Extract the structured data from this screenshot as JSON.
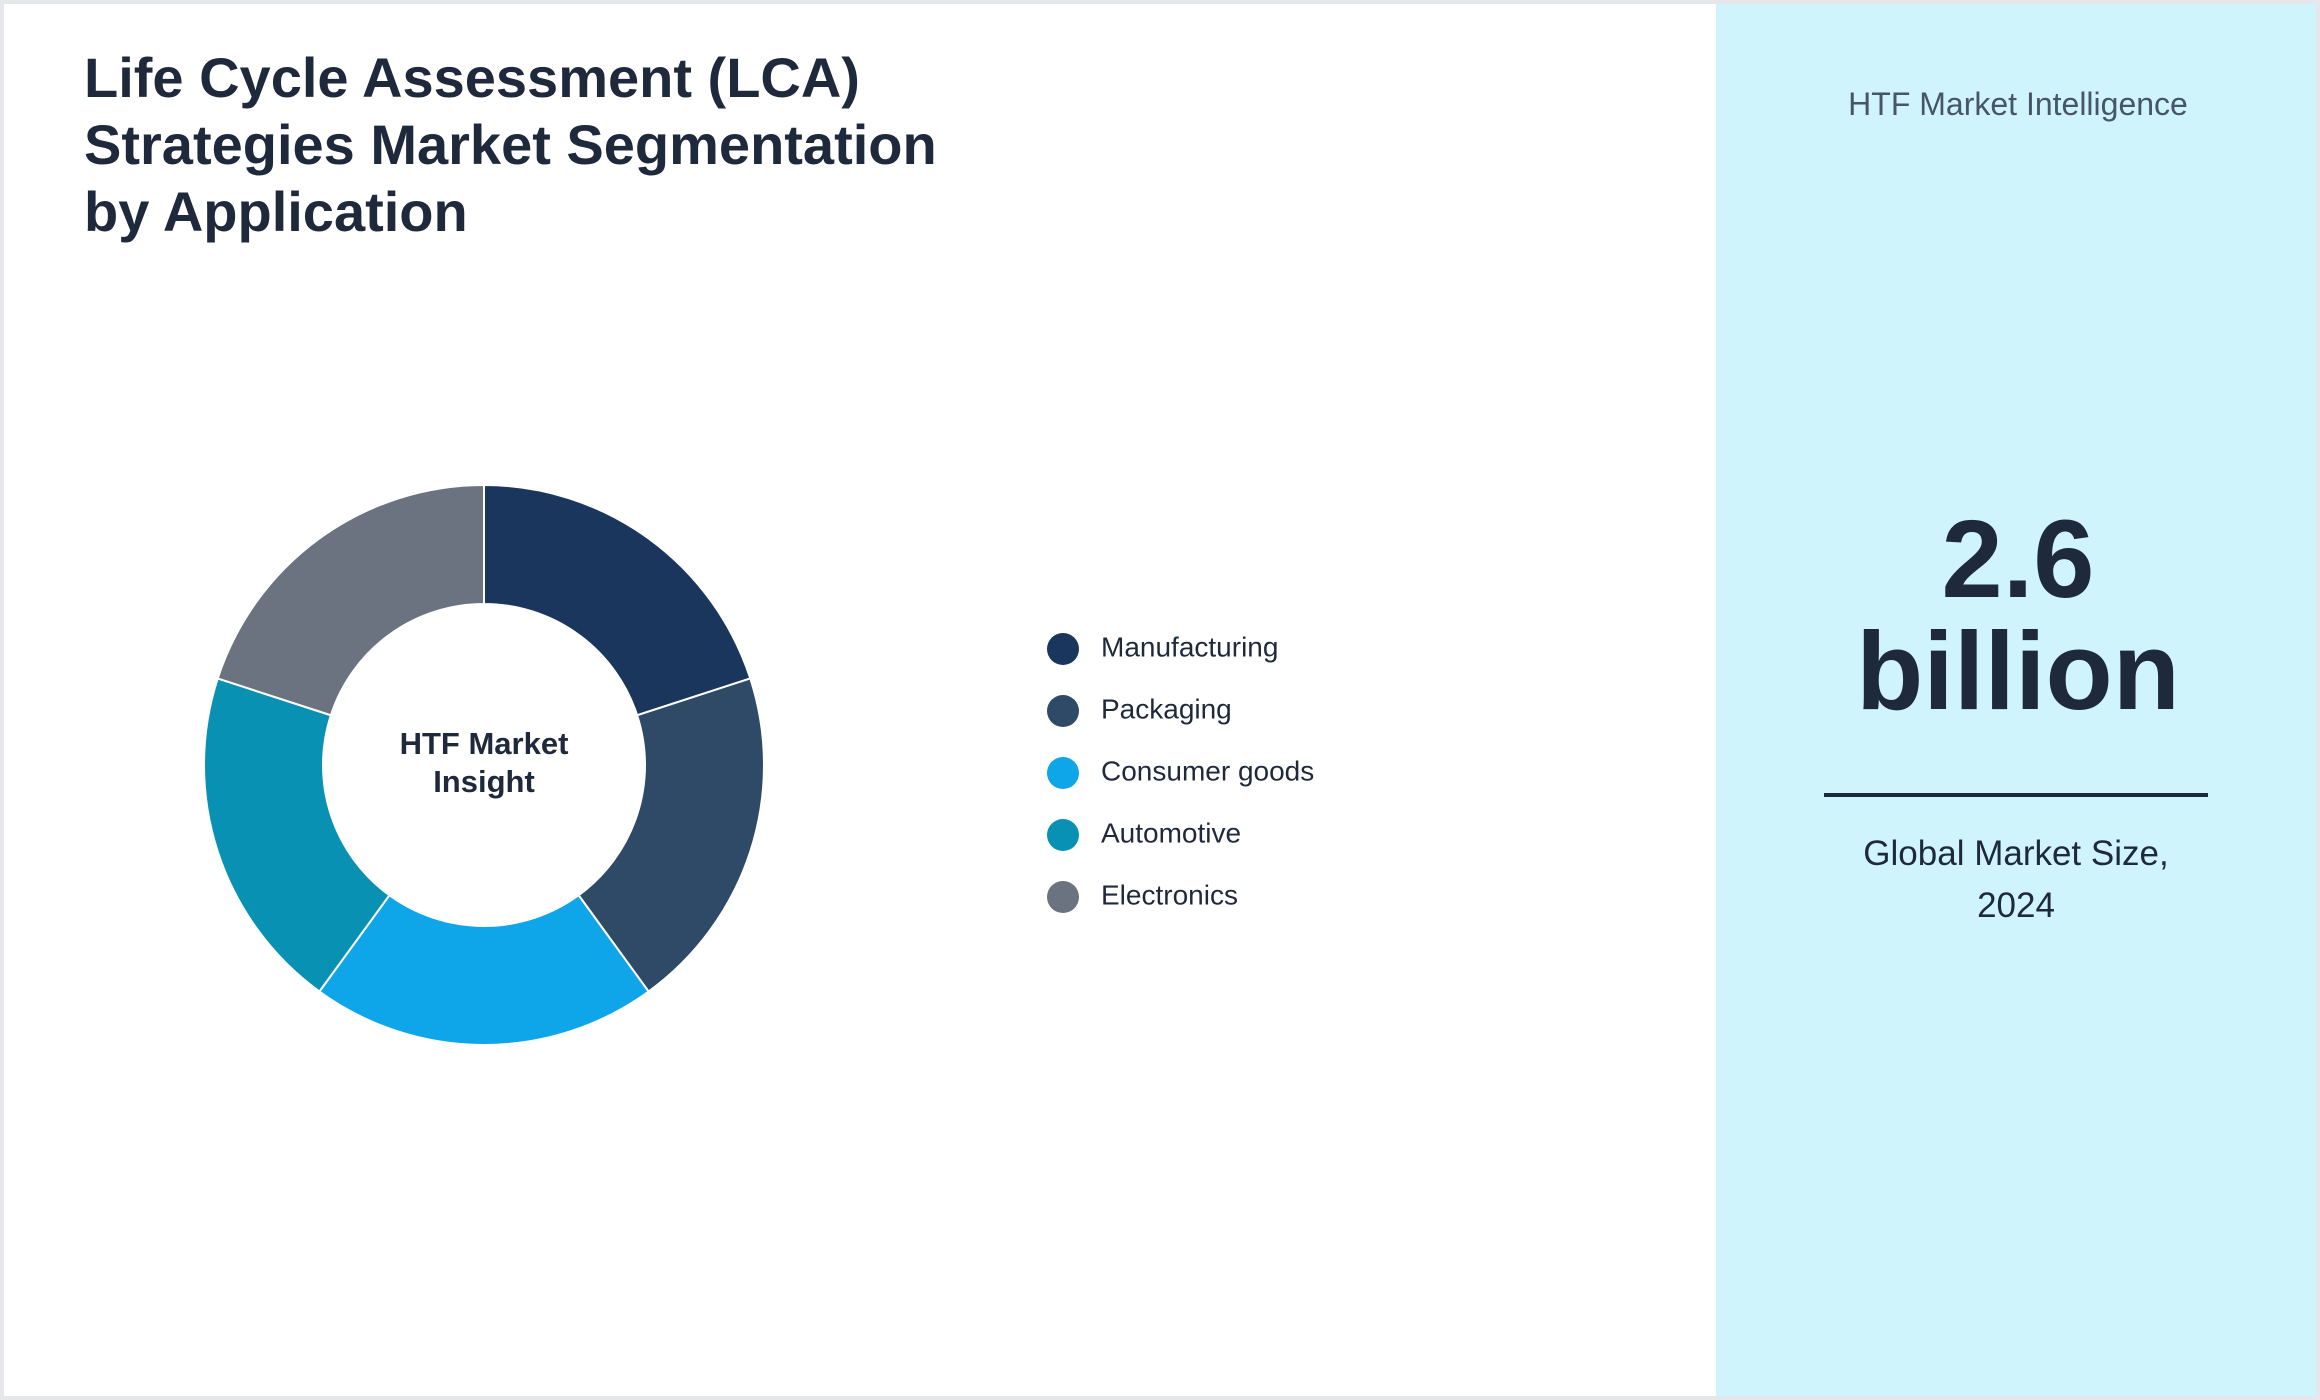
{
  "header": {
    "title": "Life Cycle Assessment (LCA) Strategies Market Segmentation by Application"
  },
  "chart_data": {
    "type": "donut",
    "categories": [
      "Manufacturing",
      "Packaging",
      "Consumer goods",
      "Automotive",
      "Electronics"
    ],
    "values": [
      20,
      20,
      20,
      20,
      20
    ],
    "colors": [
      "#1b365d",
      "#2e4a66",
      "#0ea5e9",
      "#0891b2",
      "#6b7280"
    ],
    "center_label": "HTF Market Insight"
  },
  "sidebar": {
    "logo": "HTF Market Intelligence",
    "market_value": "2.6",
    "market_unit": "billion",
    "caption": "Global Market Size, 2024"
  }
}
